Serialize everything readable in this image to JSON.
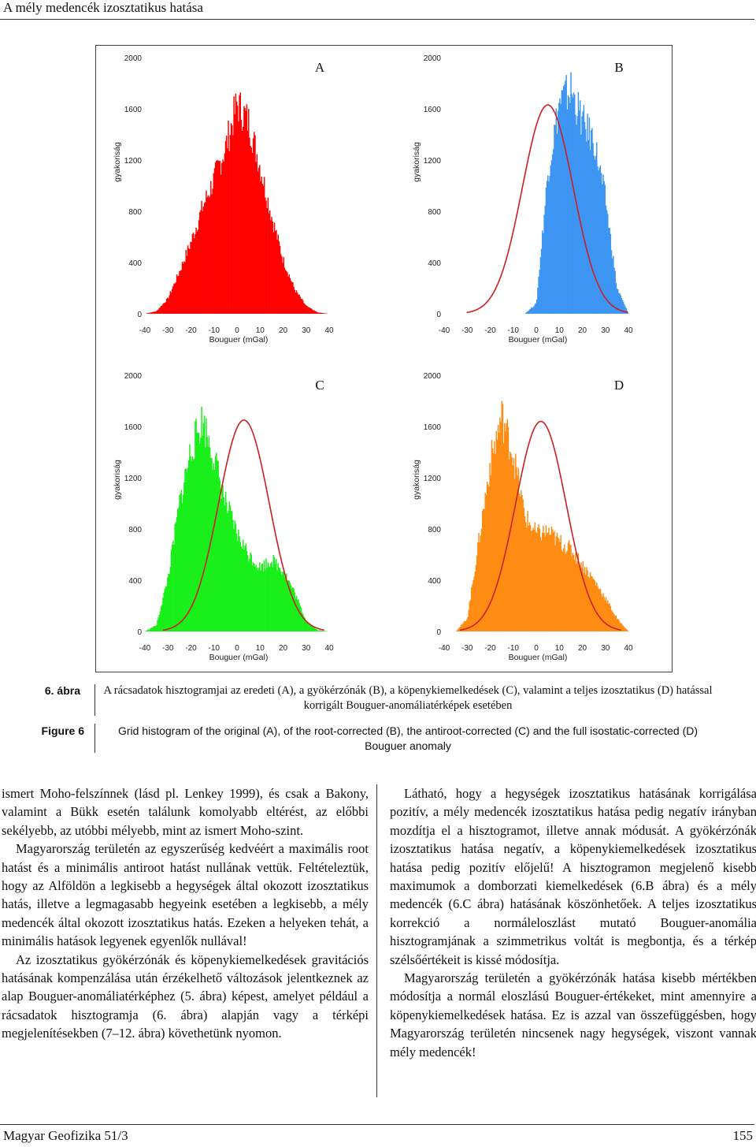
{
  "header": {
    "running_title": "A mély medencék izosztatikus hatása"
  },
  "figure": {
    "panels": [
      {
        "letter": "A",
        "color": "#ff0000",
        "curve": false,
        "ylabel": "gyakoriság",
        "xlabel": "Bouguer (mGal)"
      },
      {
        "letter": "B",
        "color": "#3d95f2",
        "curve": true,
        "ylabel": "gyakoriság",
        "xlabel": "Bouguer (mGal)"
      },
      {
        "letter": "C",
        "color": "#19ef19",
        "curve": true,
        "ylabel": "gyakoriság",
        "xlabel": "Bouguer (mGal)"
      },
      {
        "letter": "D",
        "color": "#ff8c12",
        "curve": true,
        "ylabel": "gyakoriság",
        "xlabel": "Bouguer (mGal)"
      }
    ],
    "yticks": [
      "0",
      "400",
      "800",
      "1200",
      "1600",
      "2000"
    ],
    "xticks": [
      "-40",
      "-30",
      "-20",
      "-10",
      "0",
      "10",
      "20",
      "30",
      "40"
    ],
    "curve_color": "#cc1f24"
  },
  "chart_data": [
    {
      "type": "bar",
      "panel": "A",
      "xlabel": "Bouguer (mGal)",
      "ylabel": "gyakoriság",
      "xlim": [
        -40,
        40
      ],
      "ylim": [
        0,
        2000
      ],
      "x": [
        -35,
        -30,
        -25,
        -20,
        -15,
        -10,
        -5,
        0,
        5,
        10,
        15,
        20,
        25,
        30,
        35
      ],
      "values": [
        20,
        120,
        330,
        560,
        830,
        1050,
        1300,
        1640,
        1500,
        1150,
        760,
        420,
        190,
        60,
        10
      ]
    },
    {
      "type": "bar",
      "panel": "B",
      "xlabel": "Bouguer (mGal)",
      "ylabel": "gyakoriság",
      "xlim": [
        -40,
        40
      ],
      "ylim": [
        0,
        2000
      ],
      "x": [
        0,
        5,
        10,
        15,
        20,
        25,
        30,
        35
      ],
      "values": [
        80,
        1100,
        1650,
        1750,
        1500,
        1350,
        900,
        200
      ],
      "normal_curve": {
        "mean": 5,
        "peak": 1630
      }
    },
    {
      "type": "bar",
      "panel": "C",
      "xlabel": "Bouguer (mGal)",
      "ylabel": "gyakoriság",
      "xlim": [
        -40,
        40
      ],
      "ylim": [
        0,
        2000
      ],
      "x": [
        -35,
        -30,
        -25,
        -20,
        -15,
        -10,
        -5,
        0,
        5,
        10,
        15,
        20,
        25,
        30,
        35
      ],
      "values": [
        50,
        420,
        1000,
        1420,
        1650,
        1360,
        1000,
        760,
        600,
        500,
        560,
        480,
        300,
        80,
        10
      ],
      "normal_curve": {
        "mean": 3,
        "peak": 1650
      }
    },
    {
      "type": "bar",
      "panel": "D",
      "xlabel": "Bouguer (mGal)",
      "ylabel": "gyakoriság",
      "xlim": [
        -40,
        40
      ],
      "ylim": [
        0,
        2000
      ],
      "x": [
        -30,
        -25,
        -20,
        -15,
        -10,
        -5,
        0,
        5,
        10,
        15,
        20,
        25,
        30,
        35
      ],
      "values": [
        100,
        700,
        1320,
        1680,
        1380,
        900,
        760,
        780,
        700,
        640,
        520,
        400,
        260,
        100
      ],
      "normal_curve": {
        "mean": 2,
        "peak": 1640
      }
    }
  ],
  "caption": {
    "hu_label": "6. ábra",
    "hu_text": "A rácsadatok hisztogramjai az eredeti (A), a gyökérzónák (B), a köpenykiemelkedések (C), valamint a teljes izosztatikus (D) hatással korrigált Bouguer-anomáliatérképek esetében",
    "en_label": "Figure 6",
    "en_text": "Grid histogram of the original (A), of the root-corrected (B), the antiroot-corrected (C) and the full isostatic-corrected (D) Bouguer anomaly"
  },
  "body": {
    "left": [
      "ismert Moho-felszínnek (lásd pl. Lenkey 1999), és csak a Bakony, valamint a Bükk esetén találunk komolyabb eltérést, az előbbi sekélyebb, az utóbbi mélyebb, mint az ismert Moho-szint.",
      "Magyarország területén az egyszerűség kedvéért a maximális root hatást és a minimális antiroot hatást nullának vettük. Feltételeztük, hogy az Alföldön a legkisebb a hegységek által okozott izosztatikus hatás, illetve a legmagasabb hegyeink esetében a legkisebb, a mély medencék által okozott izosztatikus hatás. Ezeken a helyeken tehát, a minimális hatások legyenek egyenlők nullával!",
      "Az izosztatikus gyökérzónák és köpenykiemelkedések gravitációs hatásának kompenzálása után érzékelhető változások jelentkeznek az alap Bouguer-anomáliatérképhez (5. ábra) képest, amelyet például a rácsadatok hisztogramja (6. ábra) alapján vagy a térképi megjelenítésekben (7–12. ábra) követhetünk nyomon."
    ],
    "right": [
      "Látható, hogy a hegységek izosztatikus hatásának korrigálása pozitív, a mély medencék izosztatikus hatása pedig negatív irányban mozdítja el a hisztogramot, illetve annak módusát. A gyökérzónák izosztatikus hatása negatív, a köpenykiemelkedések izosztatikus hatása pedig pozitív előjelű! A hisztogramon megjelenő kisebb maximumok a domborzati kiemelkedések (6.B ábra) és a mély medencék (6.C ábra) hatásának köszönhetőek. A teljes izosztatikus korrekció a normáleloszlást mutató Bouguer-anomália hisztogramjának a szimmetrikus voltát is megbontja, és a térkép szélsőértékeit is kissé módosítja.",
      "Magyarország területén a gyökérzónák hatása kisebb mértékben módosítja a normál eloszlású Bouguer-értékeket, mint amennyire a köpenykiemelkedések hatása. Ez is azzal van összefüggésben, hogy Magyarország területén nincsenek nagy hegységek, viszont vannak mély medencék!"
    ]
  },
  "footer": {
    "journal": "Magyar Geofizika 51/3",
    "page": "155"
  }
}
